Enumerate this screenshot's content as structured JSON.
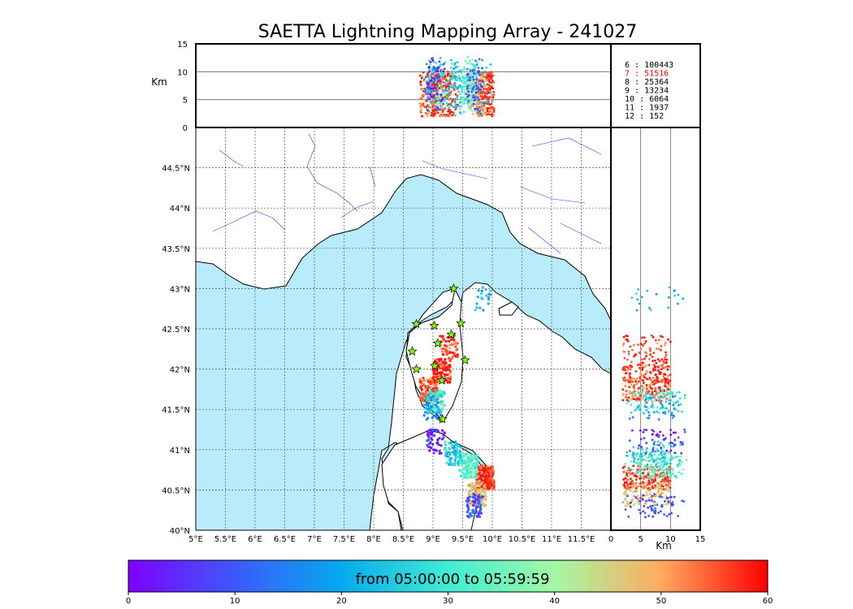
{
  "chart_data": {
    "type": "scatter",
    "title": "SAETTA Lightning Mapping Array - 241027",
    "map": {
      "lon_range": [
        5.0,
        12.0
      ],
      "lat_range": [
        40.0,
        45.0
      ],
      "lon_ticks": [
        "5°E",
        "5.5°E",
        "6°E",
        "6.5°E",
        "7°E",
        "7.5°E",
        "8°E",
        "8.5°E",
        "9°E",
        "9.5°E",
        "10°E",
        "10.5°E",
        "11°E",
        "11.5°E"
      ],
      "lat_ticks": [
        "40°N",
        "40.5°N",
        "41°N",
        "41.5°N",
        "42°N",
        "42.5°N",
        "43°N",
        "43.5°N",
        "44°N",
        "44.5°N"
      ],
      "sea_color": "#b8ecfa",
      "station_color": "#7fff00",
      "stations": [
        {
          "lon": 9.35,
          "lat": 43.0
        },
        {
          "lon": 8.72,
          "lat": 42.56
        },
        {
          "lon": 9.02,
          "lat": 42.54
        },
        {
          "lon": 9.47,
          "lat": 42.57
        },
        {
          "lon": 9.31,
          "lat": 42.43
        },
        {
          "lon": 9.08,
          "lat": 42.32
        },
        {
          "lon": 8.65,
          "lat": 42.22
        },
        {
          "lon": 9.54,
          "lat": 42.11
        },
        {
          "lon": 8.72,
          "lat": 42.0
        },
        {
          "lon": 9.03,
          "lat": 42.04
        },
        {
          "lon": 9.15,
          "lat": 41.86
        },
        {
          "lon": 9.16,
          "lat": 41.38
        }
      ],
      "lightning_clusters": [
        {
          "lon": 8.93,
          "lat": 41.75,
          "minutes": 55,
          "n": 160
        },
        {
          "lon": 9.15,
          "lat": 41.98,
          "minutes": 57,
          "n": 120
        },
        {
          "lon": 9.27,
          "lat": 42.27,
          "minutes": 56,
          "n": 60
        },
        {
          "lon": 9.05,
          "lat": 41.6,
          "minutes": 30,
          "n": 90
        },
        {
          "lon": 9.0,
          "lat": 41.52,
          "minutes": 18,
          "n": 40
        },
        {
          "lon": 9.88,
          "lat": 40.65,
          "minutes": 58,
          "n": 200
        },
        {
          "lon": 9.75,
          "lat": 40.45,
          "minutes": 47,
          "n": 120
        },
        {
          "lon": 9.6,
          "lat": 40.8,
          "minutes": 33,
          "n": 150
        },
        {
          "lon": 9.35,
          "lat": 40.95,
          "minutes": 25,
          "n": 80
        },
        {
          "lon": 9.05,
          "lat": 41.1,
          "minutes": 5,
          "n": 50
        },
        {
          "lon": 9.7,
          "lat": 40.3,
          "minutes": 10,
          "n": 60
        },
        {
          "lon": 9.85,
          "lat": 42.87,
          "minutes": 22,
          "n": 20
        }
      ]
    },
    "altitude": {
      "unit": "Km",
      "range": [
        0,
        15
      ],
      "ticks": [
        "0",
        "5",
        "10",
        "15"
      ],
      "reference_lines": [
        5,
        10
      ]
    },
    "colorbar": {
      "label": "from 05:00:00 to 05:59:59",
      "range": [
        0,
        60
      ],
      "ticks": [
        "0",
        "10",
        "20",
        "30",
        "40",
        "50",
        "60"
      ]
    },
    "station_counts": [
      {
        "label": "6 :   100443",
        "highlight": false
      },
      {
        "label": "7 :    51516",
        "highlight": true
      },
      {
        "label": "8 :    25364",
        "highlight": false
      },
      {
        "label": "9 :    13234",
        "highlight": false
      },
      {
        "label": "10 :    6064",
        "highlight": false
      },
      {
        "label": "11 :    1937",
        "highlight": false
      },
      {
        "label": "12 :     152",
        "highlight": false
      }
    ],
    "highlight_color": "#ff0000"
  }
}
